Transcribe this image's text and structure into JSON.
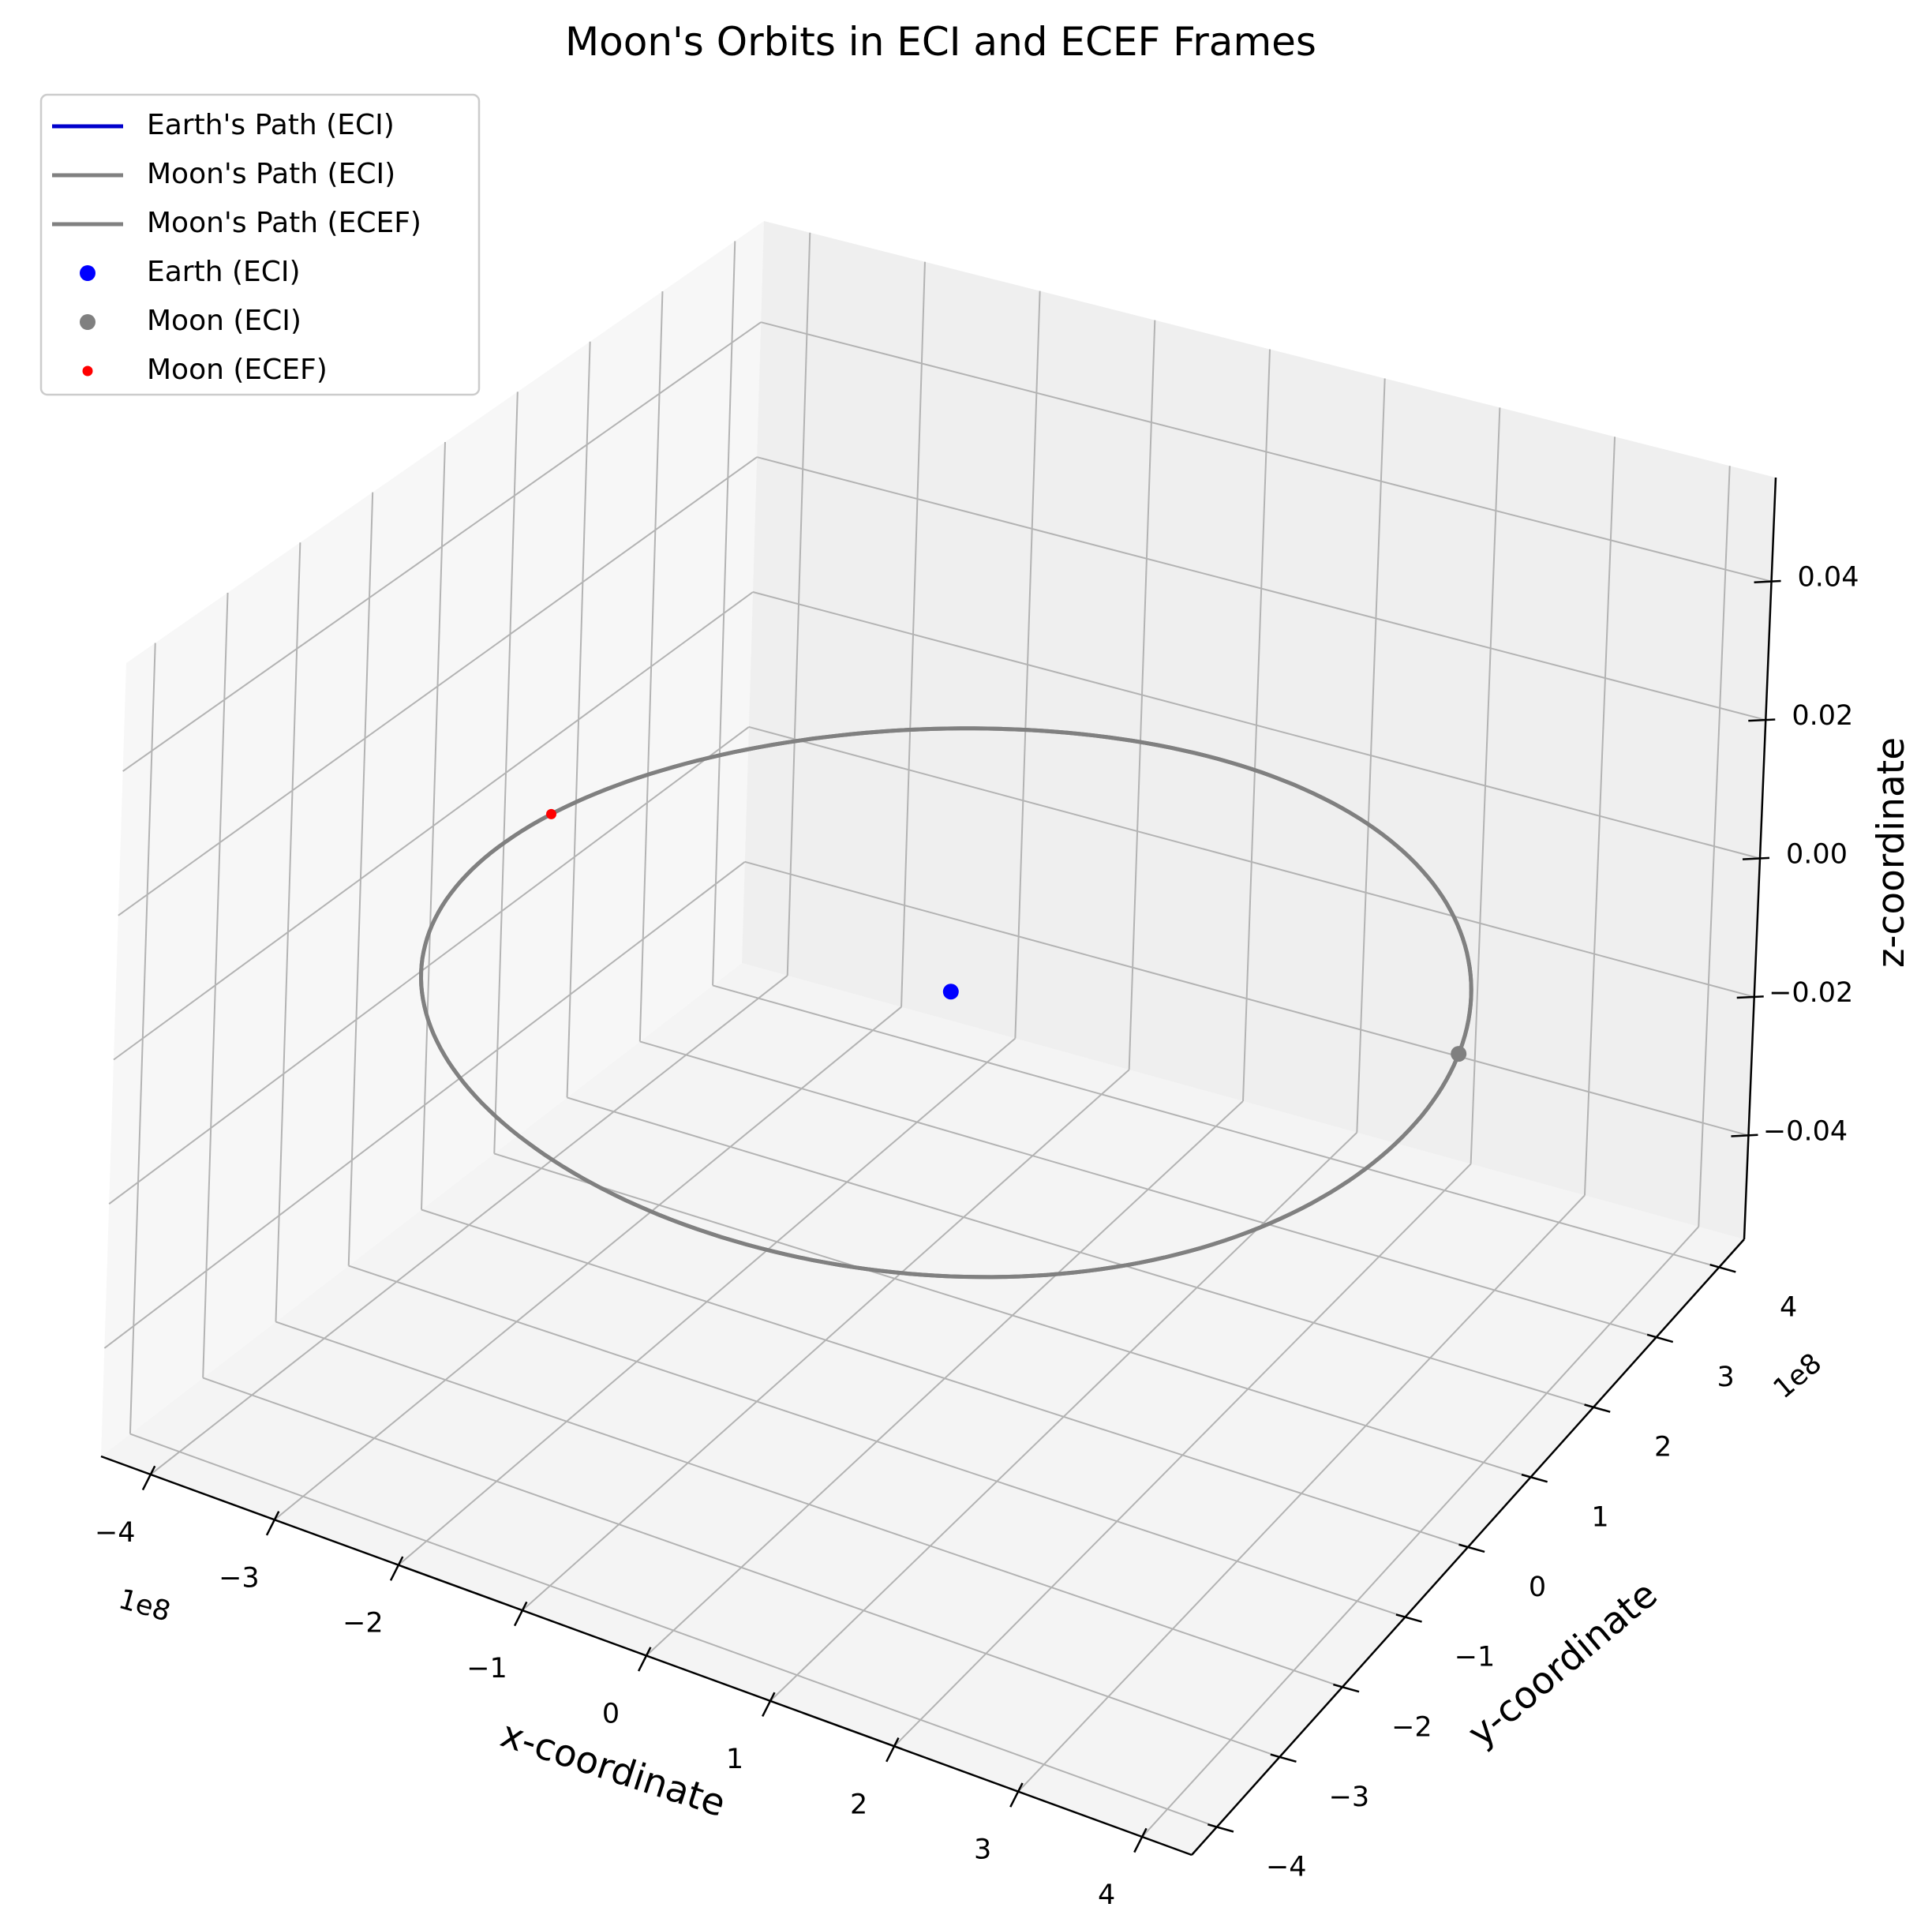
{
  "chart_data": {
    "type": "line3d",
    "title": "Moon's Orbits in ECI and ECEF Frames",
    "xlabel": "x-coordinate",
    "ylabel": "y-coordinate",
    "zlabel": "z-coordinate",
    "xlim": [
      -440000000.0,
      440000000.0
    ],
    "ylim": [
      -440000000.0,
      440000000.0
    ],
    "zlim": [
      -0.055,
      0.055
    ],
    "xticks": [
      -4,
      -3,
      -2,
      -1,
      0,
      1,
      2,
      3,
      4
    ],
    "yticks": [
      -4,
      -3,
      -2,
      -1,
      0,
      1,
      2,
      3,
      4
    ],
    "zticks": [
      -0.04,
      -0.02,
      0.0,
      0.02,
      0.04
    ],
    "xtick_labels": [
      "−4",
      "−3",
      "−2",
      "−1",
      "0",
      "1",
      "2",
      "3",
      "4"
    ],
    "ytick_labels": [
      "−4",
      "−3",
      "−2",
      "−1",
      "0",
      "1",
      "2",
      "3",
      "4"
    ],
    "ztick_labels": [
      "−0.04",
      "−0.02",
      "0.00",
      "0.02",
      "0.04"
    ],
    "x_offset_text": "1e8",
    "y_offset_text": "1e8",
    "grid": true,
    "legend_position": "upper-left",
    "series": [
      {
        "name": "Earth's Path (ECI)",
        "kind": "line",
        "color": "#0000cc",
        "center": [
          0,
          0,
          0
        ],
        "radius": 0
      },
      {
        "name": "Moon's Path (ECI)",
        "kind": "line",
        "color": "#808080",
        "center": [
          0,
          0,
          0
        ],
        "radius": 384400000.0
      },
      {
        "name": "Moon's Path (ECEF)",
        "kind": "line",
        "color": "#808080",
        "center": [
          0,
          0,
          0
        ],
        "radius": 384400000.0
      },
      {
        "name": "Earth (ECI)",
        "kind": "point",
        "color": "#0000ff",
        "point": [
          0,
          0,
          0
        ]
      },
      {
        "name": "Moon (ECI)",
        "kind": "point",
        "color": "#808080",
        "point": [
          367000000.0,
          114000000.0,
          0
        ]
      },
      {
        "name": "Moon (ECEF)",
        "kind": "point",
        "color": "#ff0000",
        "point": [
          -379000000.0,
          64000000.0,
          0
        ]
      }
    ]
  }
}
